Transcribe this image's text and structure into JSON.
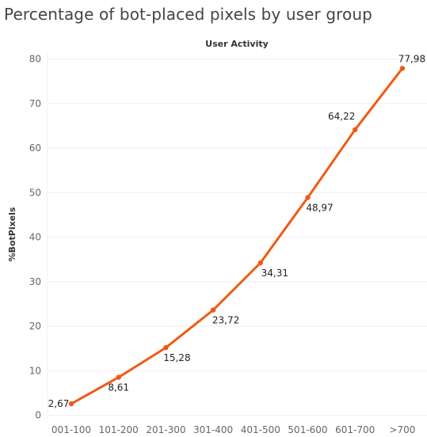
{
  "title": "Percentage of bot-placed pixels by user group",
  "chart_data": {
    "type": "line",
    "title": "Percentage of bot-placed pixels by user group",
    "xlabel": "User Activity",
    "ylabel": "%BotPixels",
    "categories": [
      "001-100",
      "101-200",
      "201-300",
      "301-400",
      "401-500",
      "501-600",
      "601-700",
      ">700"
    ],
    "series": [
      {
        "values": [
          2.67,
          8.61,
          15.28,
          23.72,
          34.31,
          48.97,
          64.22,
          77.98
        ],
        "labels": [
          "2,67",
          "8,61",
          "15,28",
          "23,72",
          "34,31",
          "48,97",
          "64,22",
          "77,98"
        ]
      }
    ],
    "ylim": [
      0,
      80
    ],
    "yticks": [
      0,
      10,
      20,
      30,
      40,
      50,
      60,
      70,
      80
    ],
    "grid": true,
    "color": "#f05a14"
  }
}
